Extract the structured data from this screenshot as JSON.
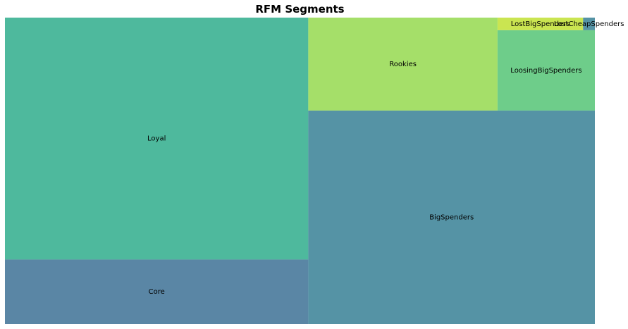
{
  "chart_data": {
    "type": "treemap",
    "title": "RFM Segments",
    "alpha": 0.8,
    "segments": [
      {
        "label": "Loyal",
        "value": 39.6,
        "color": "#22a884"
      },
      {
        "label": "Core",
        "value": 10.56,
        "color": "#31688e"
      },
      {
        "label": "BigSpenders",
        "value": 33.02,
        "color": "#2a788e"
      },
      {
        "label": "Rookies",
        "value": 9.49,
        "color": "#8fd744"
      },
      {
        "label": "LoosingBigSpenders",
        "value": 4.22,
        "color": "#4ac16d"
      },
      {
        "label": "LostBigSpenders",
        "value": 0.58,
        "color": "#bddf26"
      },
      {
        "label": "LostCheapSpenders",
        "value": 0.08,
        "color": "#2a788e"
      }
    ]
  }
}
